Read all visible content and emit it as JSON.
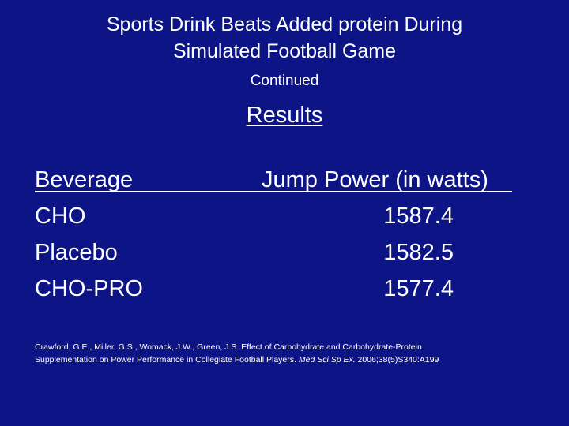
{
  "slide": {
    "title_line1": "Sports Drink Beats Added protein During",
    "title_line2": "Simulated Football Game",
    "subtitle": "Continued",
    "section_heading": "Results"
  },
  "table": {
    "headers": [
      "Beverage",
      "Jump Power (in watts)"
    ],
    "rows": [
      [
        "CHO",
        "1587.4"
      ],
      [
        "Placebo",
        "1582.5"
      ],
      [
        "CHO-PRO",
        "1577.4"
      ]
    ]
  },
  "citation": {
    "line1": "Crawford, G.E., Miller, G.S., Womack, J.W., Green, J.S. Effect of Carbohydrate and Carbohydrate-Protein",
    "line2_plain": "Supplementation on Power Performance in Collegiate Football Players. ",
    "journal": "Med Sci Sp Ex.",
    "line2_end": " 2006;38(5)S340:A199"
  },
  "colors": {
    "background": "#0c1486",
    "text": "#ffffff"
  }
}
